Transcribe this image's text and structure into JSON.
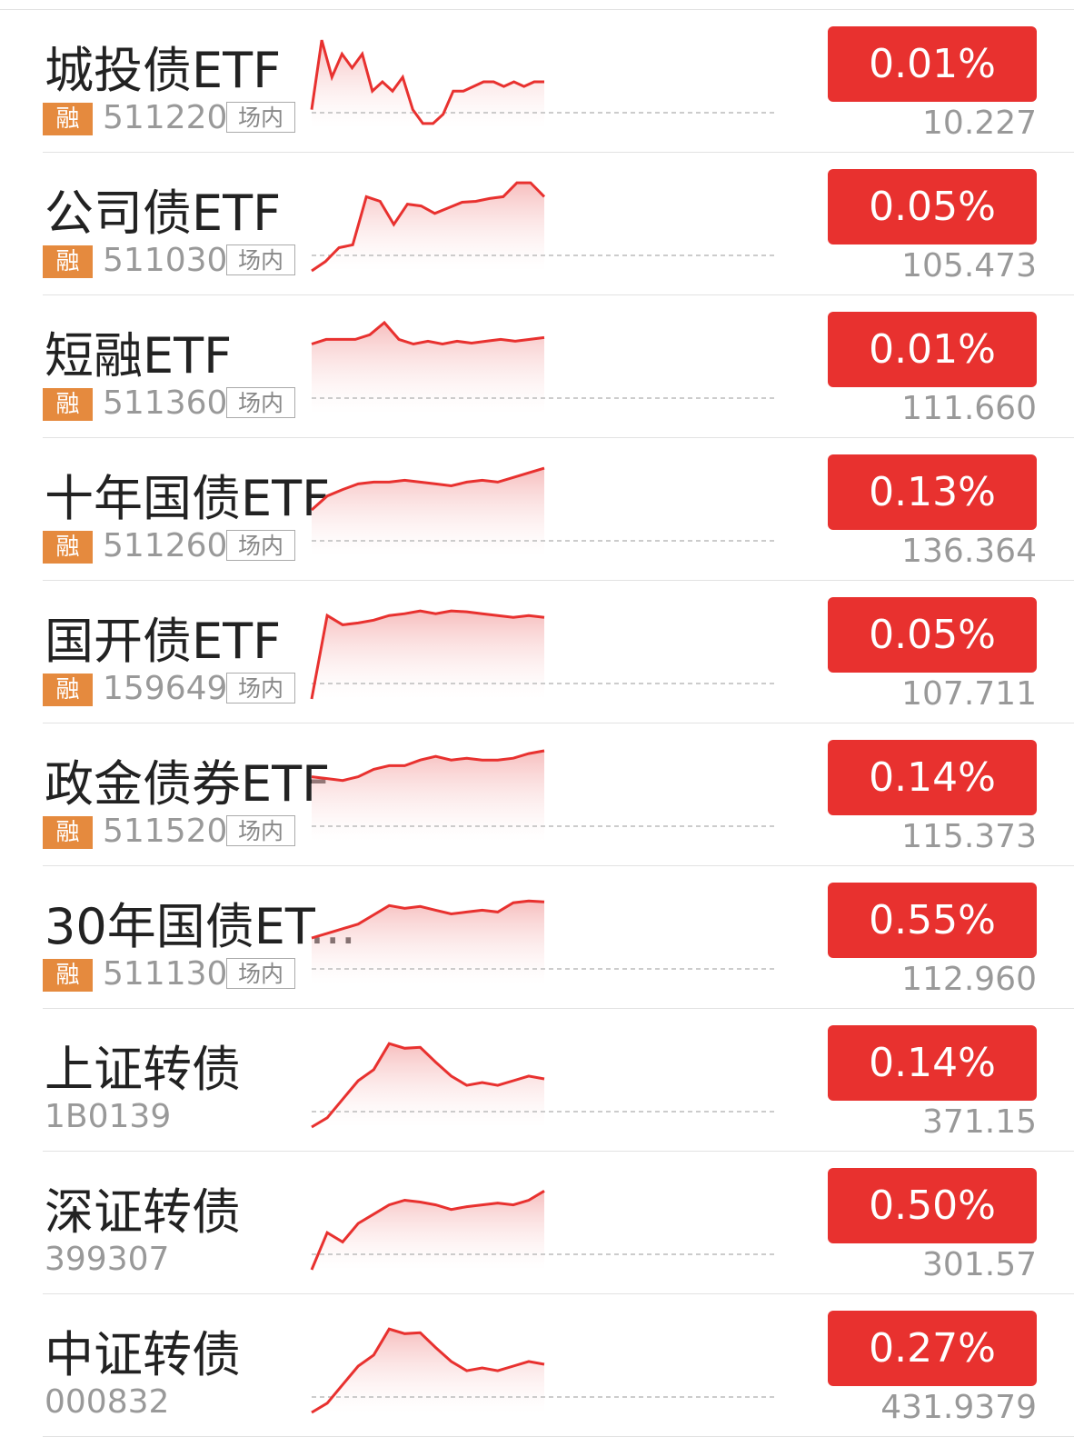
{
  "rows": [
    {
      "name": "城投债ETF",
      "badge": "融",
      "code": "511220",
      "venue": "场内",
      "change": "0.01%",
      "price": "10.227",
      "spark": [
        20,
        95,
        55,
        80,
        65,
        80,
        40,
        50,
        40,
        55,
        20,
        5,
        5,
        15,
        40,
        40,
        45,
        50,
        50,
        45,
        50,
        45,
        50,
        50
      ]
    },
    {
      "name": "公司债ETF",
      "badge": "融",
      "code": "511030",
      "venue": "场内",
      "change": "0.05%",
      "price": "105.473",
      "spark": [
        0,
        10,
        25,
        28,
        80,
        75,
        50,
        72,
        70,
        62,
        68,
        74,
        75,
        78,
        80,
        95,
        95,
        80
      ]
    },
    {
      "name": "短融ETF",
      "badge": "融",
      "code": "511360",
      "venue": "场内",
      "change": "0.01%",
      "price": "111.660",
      "spark": [
        75,
        80,
        80,
        80,
        85,
        98,
        80,
        75,
        78,
        75,
        78,
        76,
        78,
        80,
        78,
        80,
        82
      ]
    },
    {
      "name": "十年国债ETF",
      "badge": "融",
      "code": "511260",
      "venue": "场内",
      "change": "0.13%",
      "price": "136.364",
      "spark": [
        50,
        65,
        72,
        78,
        80,
        80,
        82,
        80,
        78,
        76,
        80,
        82,
        80,
        85,
        90,
        95
      ]
    },
    {
      "name": "国开债ETF",
      "badge": "融",
      "code": "159649",
      "venue": "场内",
      "change": "0.05%",
      "price": "107.711",
      "spark": [
        0,
        90,
        80,
        82,
        85,
        90,
        92,
        95,
        92,
        95,
        94,
        92,
        90,
        88,
        90,
        88
      ]
    },
    {
      "name": "政金债券ETF",
      "badge": "融",
      "code": "511520",
      "venue": "场内",
      "change": "0.14%",
      "price": "115.373",
      "spark": [
        70,
        68,
        66,
        70,
        78,
        82,
        82,
        88,
        92,
        88,
        90,
        88,
        88,
        90,
        95,
        98
      ]
    },
    {
      "name": "30年国债ET...",
      "badge": "融",
      "code": "511130",
      "venue": "场内",
      "change": "0.55%",
      "price": "112.960",
      "spark": [
        50,
        55,
        60,
        65,
        75,
        85,
        82,
        84,
        80,
        76,
        78,
        80,
        78,
        88,
        90,
        89
      ]
    },
    {
      "name": "上证转债",
      "code": "1B0139",
      "change": "0.14%",
      "price": "371.15",
      "spark": [
        0,
        10,
        30,
        50,
        62,
        90,
        85,
        86,
        70,
        55,
        45,
        48,
        45,
        50,
        55,
        52
      ]
    },
    {
      "name": "深证转债",
      "code": "399307",
      "change": "0.50%",
      "price": "301.57",
      "spark": [
        0,
        40,
        30,
        50,
        60,
        70,
        75,
        73,
        70,
        65,
        68,
        70,
        72,
        70,
        75,
        85
      ]
    },
    {
      "name": "中证转债",
      "code": "000832",
      "change": "0.27%",
      "price": "431.9379",
      "spark": [
        0,
        10,
        30,
        50,
        62,
        90,
        85,
        86,
        70,
        55,
        45,
        48,
        45,
        50,
        55,
        52
      ]
    }
  ]
}
